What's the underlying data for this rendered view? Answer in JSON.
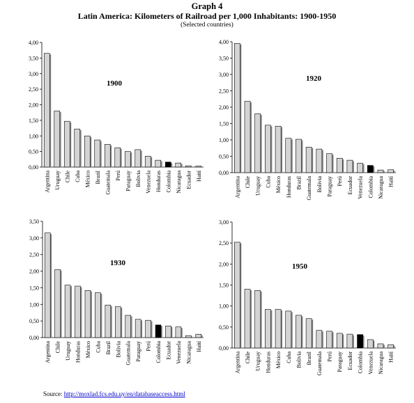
{
  "header": {
    "title": "Graph 4",
    "subtitle": "Latin America: Kilometers of Railroad per 1,000 Inhabitants: 1900-1950",
    "note": "(Selected countries)"
  },
  "source": {
    "label": "Source:",
    "url": "http://moxlad.fcs.edu.uy/en/databaseaccess.html"
  },
  "colors": {
    "bar": "#d4d4d4",
    "highlight": "#000000",
    "shadow": "#8a8a8a",
    "axis": "#000000"
  },
  "chart_data": [
    {
      "type": "bar",
      "title": "1900",
      "categories": [
        "Argentina",
        "Uruguay",
        "Chile",
        "Cuba",
        "México",
        "Brazil",
        "Guatemala",
        "Perú",
        "Paraguay",
        "Bolivia",
        "Venezuela",
        "Honduras",
        "Colombia",
        "Nicaragua",
        "Ecuador",
        "Haití"
      ],
      "values": [
        3.65,
        1.8,
        1.47,
        1.22,
        1.0,
        0.87,
        0.73,
        0.62,
        0.5,
        0.56,
        0.35,
        0.22,
        0.16,
        0.13,
        0.04,
        0.03
      ],
      "highlight": "Colombia",
      "ylim": [
        0,
        4
      ],
      "yticks": [
        "0,00",
        "0,50",
        "1,00",
        "1,50",
        "2,00",
        "2,50",
        "3,00",
        "3,50",
        "4,00"
      ]
    },
    {
      "type": "bar",
      "title": "1920",
      "categories": [
        "Argentina",
        "Chile",
        "Uruguay",
        "Cuba",
        "México",
        "Honduras",
        "Brazil",
        "Guatemala",
        "Bolivia",
        "Paraguay",
        "Perú",
        "Ecuador",
        "Venezuela",
        "Colombia",
        "Nicaragua",
        "Haití"
      ],
      "values": [
        3.95,
        2.18,
        1.8,
        1.45,
        1.42,
        1.05,
        1.02,
        0.78,
        0.72,
        0.58,
        0.44,
        0.38,
        0.29,
        0.22,
        0.08,
        0.09
      ],
      "highlight": "Colombia",
      "ylim": [
        0,
        4
      ],
      "yticks": [
        "0,00",
        "0,50",
        "1,00",
        "1,50",
        "2,00",
        "2,50",
        "3,00",
        "3,50",
        "4,00"
      ]
    },
    {
      "type": "bar",
      "title": "1930",
      "categories": [
        "Argentina",
        "Chile",
        "Uruguay",
        "Honduras",
        "México",
        "Cuba",
        "Brazil",
        "Bolivia",
        "Guatemala",
        "Paraguay",
        "Perú",
        "Colombia",
        "Ecuador",
        "Venezuela",
        "Nicaragua",
        "Haití"
      ],
      "values": [
        3.15,
        2.05,
        1.58,
        1.55,
        1.42,
        1.35,
        0.98,
        0.93,
        0.67,
        0.55,
        0.52,
        0.38,
        0.35,
        0.32,
        0.06,
        0.1
      ],
      "highlight": "Colombia",
      "ylim": [
        0,
        3.5
      ],
      "yticks": [
        "0,00",
        "0,50",
        "1,00",
        "1,50",
        "2,00",
        "2,50",
        "3,00",
        "3,50"
      ]
    },
    {
      "type": "bar",
      "title": "1950",
      "categories": [
        "Argentina",
        "Chile",
        "Uruguay",
        "Honduras",
        "México",
        "Cuba",
        "Bolivia",
        "Brazil",
        "Guatemala",
        "Perú",
        "Paraguay",
        "Ecuador",
        "Colombia",
        "Venezuela",
        "Nicaragua",
        "Haití"
      ],
      "values": [
        2.52,
        1.4,
        1.37,
        0.92,
        0.92,
        0.88,
        0.78,
        0.7,
        0.42,
        0.4,
        0.35,
        0.33,
        0.32,
        0.2,
        0.1,
        0.08
      ],
      "highlight": "Colombia",
      "ylim": [
        0,
        3
      ],
      "yticks": [
        "0,00",
        "0,50",
        "1,00",
        "1,50",
        "2,00",
        "2,50",
        "3,00"
      ]
    }
  ]
}
